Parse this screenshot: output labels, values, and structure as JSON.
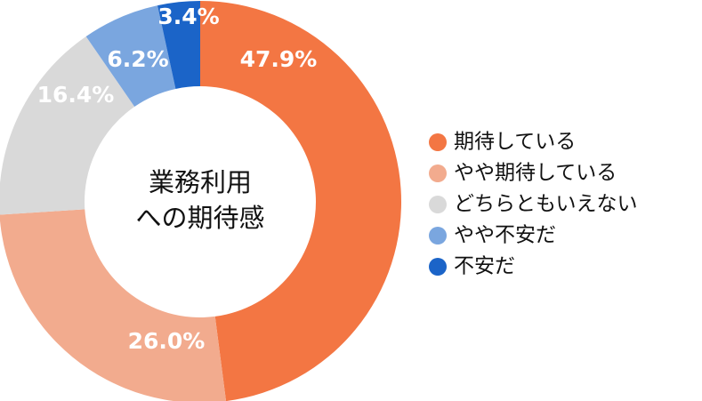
{
  "chart_data": {
    "type": "pie",
    "title": [
      "業務利用",
      "への期待感"
    ],
    "categories": [
      "期待している",
      "やや期待している",
      "どちらともいえない",
      "やや不安だ",
      "不安だ"
    ],
    "values": [
      47.9,
      26.0,
      16.4,
      6.2,
      3.4
    ],
    "value_labels": [
      "47.9%",
      "26.0%",
      "16.4%",
      "6.2%",
      "3.4%"
    ],
    "colors": [
      "#f37643",
      "#f2ab8e",
      "#d9d9d9",
      "#7aa6df",
      "#1b64c8"
    ]
  }
}
